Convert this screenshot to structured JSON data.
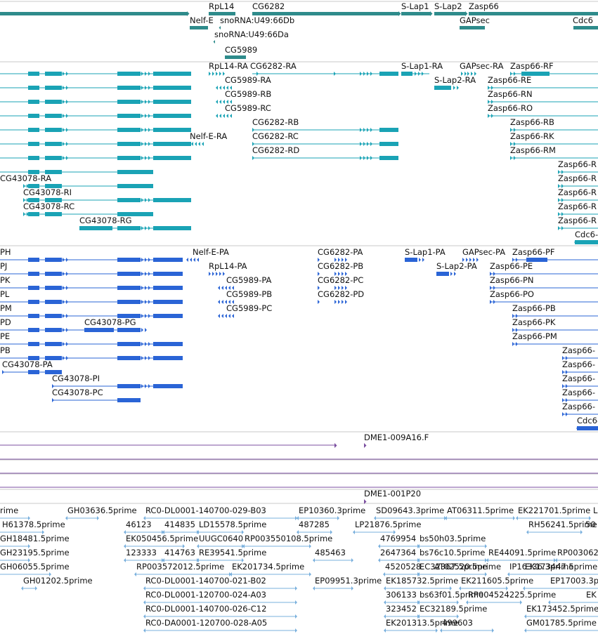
{
  "colors": {
    "gene": "#2e8b8b",
    "rna": "#1aa3b5",
    "protein": "#2a64d6",
    "clone": "#7b4fa0",
    "est": "#79b0dd",
    "divider": "#c8c8c8",
    "text": "#111111"
  },
  "tracks": {
    "genes": {
      "labels": [
        {
          "id": "rpl14",
          "text": "RpL14"
        },
        {
          "id": "cg6282",
          "text": "CG6282"
        },
        {
          "id": "slap1",
          "text": "S-Lap1"
        },
        {
          "id": "slap2",
          "text": "S-Lap2"
        },
        {
          "id": "zasp66",
          "text": "Zasp66"
        },
        {
          "id": "nelfe",
          "text": "Nelf-E"
        },
        {
          "id": "snorna-db",
          "text": "snoRNA:U49:66Db"
        },
        {
          "id": "snorna-da",
          "text": "snoRNA:U49:66Da"
        },
        {
          "id": "gapsec",
          "text": "GAPsec"
        },
        {
          "id": "cdc6",
          "text": "Cdc6"
        },
        {
          "id": "cg5989",
          "text": "CG5989"
        }
      ]
    },
    "transcripts": {
      "labels": [
        {
          "id": "rpl14-ra",
          "text": "RpL14-RA"
        },
        {
          "id": "cg6282-ra",
          "text": "CG6282-RA"
        },
        {
          "id": "slap1-ra",
          "text": "S-Lap1-RA"
        },
        {
          "id": "gapsec-ra",
          "text": "GAPsec-RA"
        },
        {
          "id": "zasp66-rf",
          "text": "Zasp66-RF"
        },
        {
          "id": "cg5989-ra",
          "text": "CG5989-RA"
        },
        {
          "id": "slap2-ra",
          "text": "S-Lap2-RA"
        },
        {
          "id": "zasp66-re",
          "text": "Zasp66-RE"
        },
        {
          "id": "cg5989-rb",
          "text": "CG5989-RB"
        },
        {
          "id": "zasp66-rn",
          "text": "Zasp66-RN"
        },
        {
          "id": "cg5989-rc",
          "text": "CG5989-RC"
        },
        {
          "id": "zasp66-ro",
          "text": "Zasp66-RO"
        },
        {
          "id": "cg6282-rb",
          "text": "CG6282-RB"
        },
        {
          "id": "zasp66-rb",
          "text": "Zasp66-RB"
        },
        {
          "id": "nelfe-ra",
          "text": "Nelf-E-RA"
        },
        {
          "id": "cg6282-rc",
          "text": "CG6282-RC"
        },
        {
          "id": "zasp66-rk",
          "text": "Zasp66-RK"
        },
        {
          "id": "cg6282-rd",
          "text": "CG6282-RD"
        },
        {
          "id": "zasp66-rm",
          "text": "Zasp66-RM"
        },
        {
          "id": "zasp66-r1",
          "text": "Zasp66-R"
        },
        {
          "id": "cg43078-ra",
          "text": "CG43078-RA"
        },
        {
          "id": "zasp66-r2",
          "text": "Zasp66-R"
        },
        {
          "id": "cg43078-ri",
          "text": "CG43078-RI"
        },
        {
          "id": "zasp66-r3",
          "text": "Zasp66-R"
        },
        {
          "id": "cg43078-rc",
          "text": "CG43078-RC"
        },
        {
          "id": "zasp66-r4",
          "text": "Zasp66-R"
        },
        {
          "id": "cg43078-rg",
          "text": "CG43078-RG"
        },
        {
          "id": "zasp66-r5",
          "text": "Zasp66-R"
        },
        {
          "id": "cdc6-r",
          "text": "Cdc6-"
        }
      ]
    },
    "proteins": {
      "labels": [
        {
          "id": "ph",
          "text": "PH"
        },
        {
          "id": "nelfe-pa",
          "text": "Nelf-E-PA"
        },
        {
          "id": "cg6282-pa",
          "text": "CG6282-PA"
        },
        {
          "id": "slap1-pa",
          "text": "S-Lap1-PA"
        },
        {
          "id": "gapsec-pa",
          "text": "GAPsec-PA"
        },
        {
          "id": "zasp66-pf",
          "text": "Zasp66-PF"
        },
        {
          "id": "pj",
          "text": "PJ"
        },
        {
          "id": "rpl14-pa",
          "text": "RpL14-PA"
        },
        {
          "id": "cg6282-pb",
          "text": "CG6282-PB"
        },
        {
          "id": "slap2-pa",
          "text": "S-Lap2-PA"
        },
        {
          "id": "zasp66-pe",
          "text": "Zasp66-PE"
        },
        {
          "id": "pk",
          "text": "PK"
        },
        {
          "id": "cg5989-pa",
          "text": "CG5989-PA"
        },
        {
          "id": "cg6282-pc",
          "text": "CG6282-PC"
        },
        {
          "id": "zasp66-pn",
          "text": "Zasp66-PN"
        },
        {
          "id": "pl",
          "text": "PL"
        },
        {
          "id": "cg5989-pb",
          "text": "CG5989-PB"
        },
        {
          "id": "cg6282-pd",
          "text": "CG6282-PD"
        },
        {
          "id": "zasp66-po",
          "text": "Zasp66-PO"
        },
        {
          "id": "pm",
          "text": "PM"
        },
        {
          "id": "cg5989-pc",
          "text": "CG5989-PC"
        },
        {
          "id": "zasp66-pb",
          "text": "Zasp66-PB"
        },
        {
          "id": "pd",
          "text": "PD"
        },
        {
          "id": "cg43078-pg",
          "text": "CG43078-PG"
        },
        {
          "id": "zasp66-pk",
          "text": "Zasp66-PK"
        },
        {
          "id": "pe",
          "text": "PE"
        },
        {
          "id": "zasp66-pm",
          "text": "Zasp66-PM"
        },
        {
          "id": "pb",
          "text": "PB"
        },
        {
          "id": "zasp66-p1",
          "text": "Zasp66-"
        },
        {
          "id": "cg43078-pa",
          "text": "CG43078-PA"
        },
        {
          "id": "zasp66-p2",
          "text": "Zasp66-"
        },
        {
          "id": "cg43078-pi",
          "text": "CG43078-PI"
        },
        {
          "id": "zasp66-p3",
          "text": "Zasp66-"
        },
        {
          "id": "cg43078-pc",
          "text": "CG43078-PC"
        },
        {
          "id": "zasp66-p4",
          "text": "Zasp66-"
        },
        {
          "id": "zasp66-p5",
          "text": "Zasp66-"
        },
        {
          "id": "cdc6-p",
          "text": "Cdc6-"
        }
      ]
    },
    "clones": {
      "labels": [
        {
          "id": "dme1-009a16",
          "text": "DME1-009A16.F"
        },
        {
          "id": "dme1-001p20",
          "text": "DME1-001P20"
        }
      ]
    },
    "ests": {
      "labels": [
        {
          "id": "e01",
          "text": "rime"
        },
        {
          "id": "e02",
          "text": "GH03636.5prime"
        },
        {
          "id": "e03",
          "text": "RC0-DL0001-140700-029-B03"
        },
        {
          "id": "e04",
          "text": "EP10360.3prime"
        },
        {
          "id": "e05",
          "text": "SD09643.3prime"
        },
        {
          "id": "e06",
          "text": "AT06311.5prime"
        },
        {
          "id": "e07",
          "text": "EK221701.5prime"
        },
        {
          "id": "e08",
          "text": "L"
        },
        {
          "id": "e09",
          "text": "H61378.5prime"
        },
        {
          "id": "e10",
          "text": "46123"
        },
        {
          "id": "e11",
          "text": "414835"
        },
        {
          "id": "e12",
          "text": "LD15578.5prime"
        },
        {
          "id": "e13",
          "text": "487285"
        },
        {
          "id": "e14",
          "text": "LP21876.5prime"
        },
        {
          "id": "e15",
          "text": "RH56241.5prime"
        },
        {
          "id": "e16",
          "text": "50"
        },
        {
          "id": "e17",
          "text": "GH18481.5prime"
        },
        {
          "id": "e18",
          "text": "EK050456.5prime"
        },
        {
          "id": "e19",
          "text": "UUGC0640"
        },
        {
          "id": "e20",
          "text": "RP003550108.5prime"
        },
        {
          "id": "e21",
          "text": "4769954"
        },
        {
          "id": "e22",
          "text": "bs50h03.5prime"
        },
        {
          "id": "e23",
          "text": "GH23195.5prime"
        },
        {
          "id": "e24",
          "text": "123333"
        },
        {
          "id": "e25",
          "text": "414763"
        },
        {
          "id": "e26",
          "text": "RE39541.5prime"
        },
        {
          "id": "e27",
          "text": "485463"
        },
        {
          "id": "e28",
          "text": "2647364"
        },
        {
          "id": "e29",
          "text": "bs76c10.5prime"
        },
        {
          "id": "e30",
          "text": "RE44091.5prime"
        },
        {
          "id": "e31",
          "text": "RP003062"
        },
        {
          "id": "e32",
          "text": "GH06055.5prime"
        },
        {
          "id": "e33",
          "text": "RP003572012.5prime"
        },
        {
          "id": "e34",
          "text": "EK201734.5prime"
        },
        {
          "id": "e35",
          "text": "4520528"
        },
        {
          "id": "e36",
          "text": "EC32367.5prime"
        },
        {
          "id": "e37",
          "text": "IP16336.3prime"
        },
        {
          "id": "e38",
          "text": "GH01202.5prime"
        },
        {
          "id": "e39",
          "text": "RC0-DL0001-140700-021-B02"
        },
        {
          "id": "e40",
          "text": "EP09951.3prime"
        },
        {
          "id": "e41",
          "text": "EK185732.5prime"
        },
        {
          "id": "e42",
          "text": "AT02520.5prime"
        },
        {
          "id": "e43",
          "text": "EK173447.5prime"
        },
        {
          "id": "e44",
          "text": "RC0-DL0001-120700-024-A03"
        },
        {
          "id": "e45",
          "text": "306133"
        },
        {
          "id": "e46",
          "text": "bs63f01.5prime"
        },
        {
          "id": "e47",
          "text": "EK211605.5prime"
        },
        {
          "id": "e48",
          "text": "EP17003.3p"
        },
        {
          "id": "e49",
          "text": "RC0-DL0001-140700-026-C12"
        },
        {
          "id": "e50",
          "text": "323452"
        },
        {
          "id": "e51",
          "text": "EC32189.5prime"
        },
        {
          "id": "e52",
          "text": "RP004524225.5prime"
        },
        {
          "id": "e53",
          "text": "EK"
        },
        {
          "id": "e54",
          "text": "RC0-DA0001-120700-028-A05"
        },
        {
          "id": "e55",
          "text": "EK201313.5prime"
        },
        {
          "id": "e56",
          "text": "499603"
        },
        {
          "id": "e57",
          "text": "EK173452.5prime"
        },
        {
          "id": "e58",
          "text": "GM01785.5prime"
        }
      ]
    }
  }
}
